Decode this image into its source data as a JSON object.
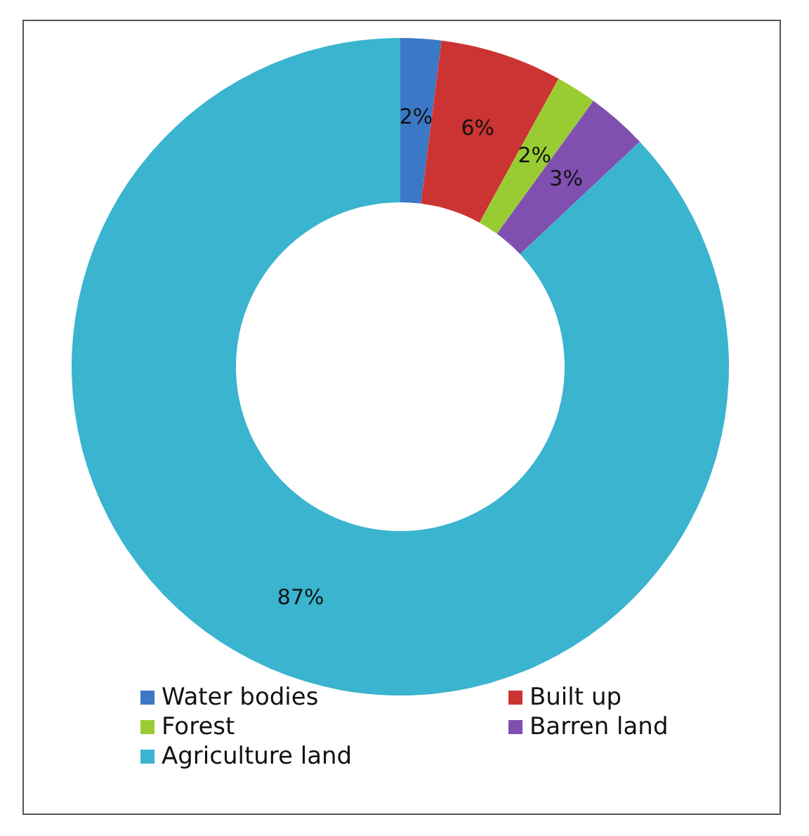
{
  "chart_data": {
    "type": "donut",
    "categories": [
      "Water bodies",
      "Built up",
      "Forest",
      "Barren land",
      "Agriculture land"
    ],
    "values": [
      2,
      6,
      2,
      3,
      87
    ],
    "value_labels": [
      "2%",
      "6%",
      "2%",
      "3%",
      "87%"
    ],
    "colors": [
      "#3b78c6",
      "#cc3333",
      "#99cc33",
      "#8050b0",
      "#3ab4cf"
    ],
    "legend": "bottom"
  }
}
